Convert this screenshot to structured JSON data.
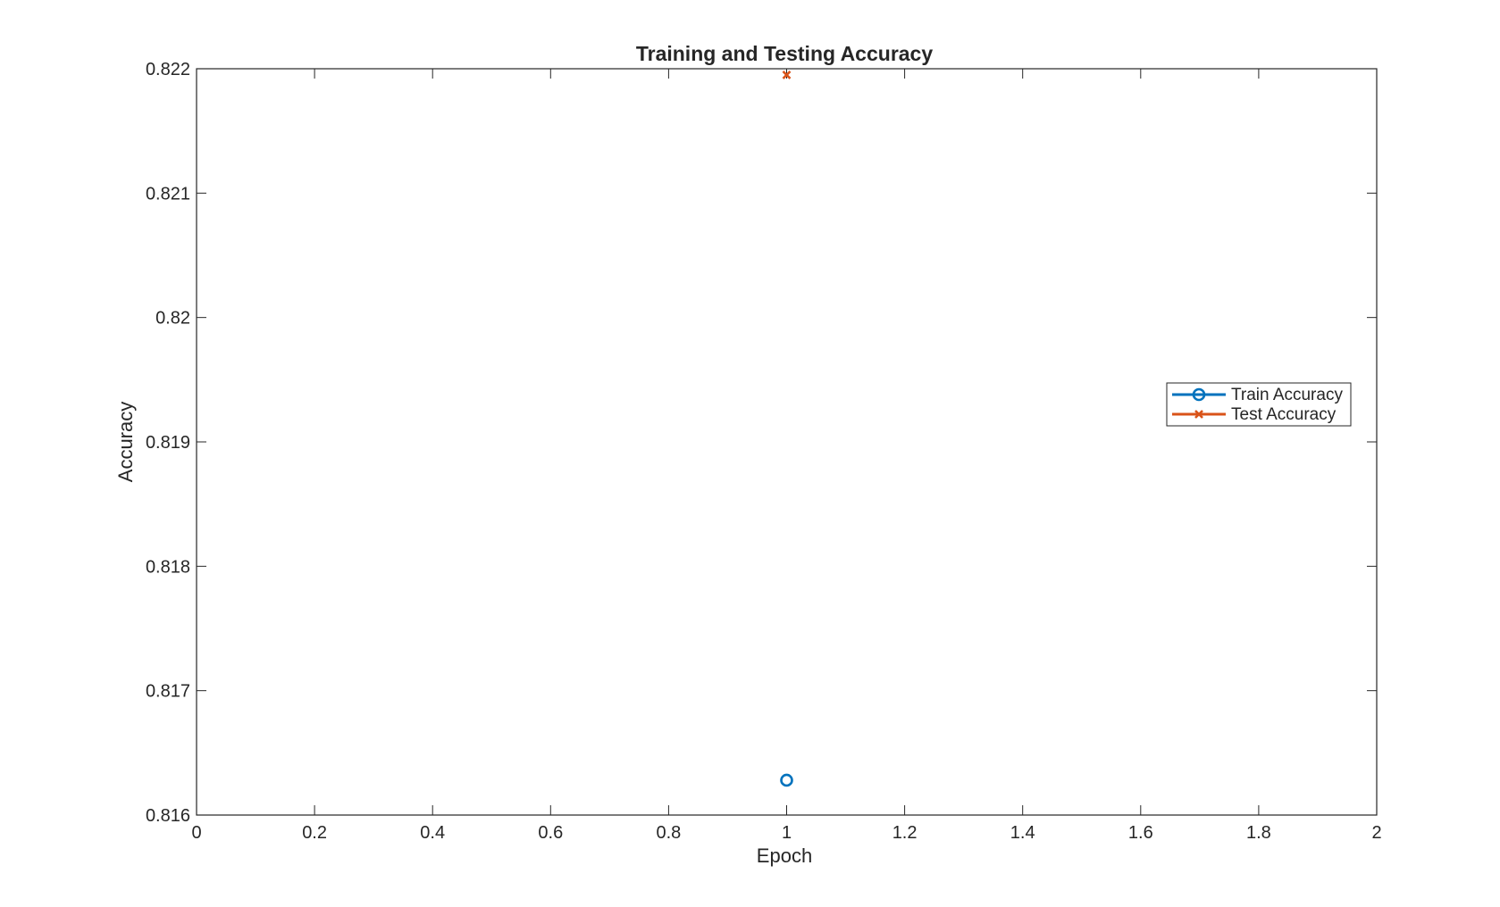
{
  "chart_data": {
    "type": "scatter",
    "title": "Training and Testing Accuracy",
    "xlabel": "Epoch",
    "ylabel": "Accuracy",
    "xlim": [
      0,
      2
    ],
    "ylim": [
      0.816,
      0.822
    ],
    "xticks": [
      0,
      0.2,
      0.4,
      0.6,
      0.8,
      1,
      1.2,
      1.4,
      1.6,
      1.8,
      2
    ],
    "xtick_labels": [
      "0",
      "0.2",
      "0.4",
      "0.6",
      "0.8",
      "1",
      "1.2",
      "1.4",
      "1.6",
      "1.8",
      "2"
    ],
    "yticks": [
      0.816,
      0.817,
      0.818,
      0.819,
      0.82,
      0.821,
      0.822
    ],
    "ytick_labels": [
      "0.816",
      "0.817",
      "0.818",
      "0.819",
      "0.82",
      "0.821",
      "0.822"
    ],
    "grid": false,
    "legend_position": "right",
    "series": [
      {
        "name": "Train Accuracy",
        "marker": "circle",
        "color": "#0072BD",
        "x": [
          1
        ],
        "y": [
          0.81628
        ]
      },
      {
        "name": "Test Accuracy",
        "marker": "x",
        "color": "#D95319",
        "x": [
          1
        ],
        "y": [
          0.82195
        ]
      }
    ]
  }
}
